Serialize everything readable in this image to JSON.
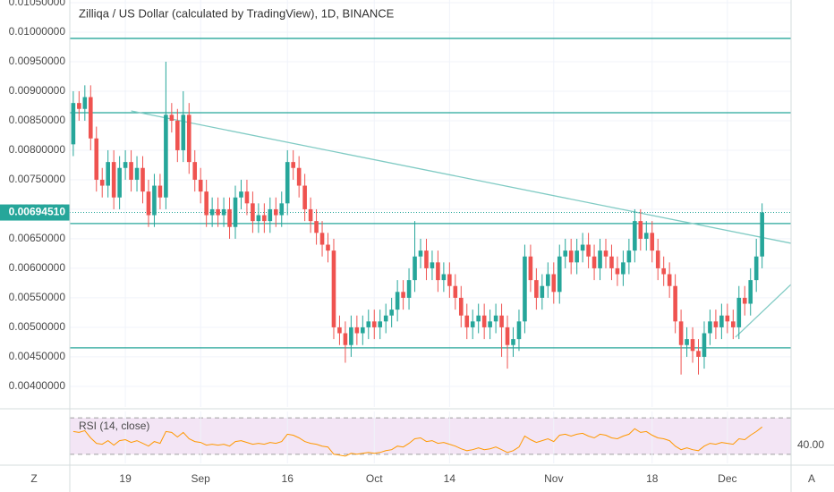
{
  "chart_data": {
    "type": "candlestick",
    "title": "Zilliqa / US Dollar (calculated by TradingView), 1D, BINANCE",
    "up_color": "#26a69a",
    "down_color": "#ef5350",
    "grid": true,
    "ylim": [
      0.00365,
      0.010545
    ],
    "xlim": [
      -0.6,
      124
    ],
    "yticks": [
      {
        "value": 0.0105,
        "label": "0.01050000"
      },
      {
        "value": 0.01,
        "label": "0.01000000"
      },
      {
        "value": 0.0095,
        "label": "0.00950000"
      },
      {
        "value": 0.009,
        "label": "0.00900000"
      },
      {
        "value": 0.0085,
        "label": "0.00850000"
      },
      {
        "value": 0.008,
        "label": "0.00800000"
      },
      {
        "value": 0.0075,
        "label": "0.00750000"
      },
      {
        "value": 0.007,
        "label": "0.00700000"
      },
      {
        "value": 0.0065,
        "label": "0.00650000"
      },
      {
        "value": 0.006,
        "label": "0.00600000"
      },
      {
        "value": 0.0055,
        "label": "0.00550000"
      },
      {
        "value": 0.005,
        "label": "0.00500000"
      },
      {
        "value": 0.0045,
        "label": "0.00450000"
      },
      {
        "value": 0.004,
        "label": "0.00400000"
      }
    ],
    "xticks": [
      {
        "value": 9,
        "label": "19"
      },
      {
        "value": 22,
        "label": "Sep"
      },
      {
        "value": 37,
        "label": "16"
      },
      {
        "value": 52,
        "label": "Oct"
      },
      {
        "value": 65,
        "label": "14"
      },
      {
        "value": 83,
        "label": "Nov"
      },
      {
        "value": 100,
        "label": "18"
      },
      {
        "value": 113,
        "label": "Dec"
      }
    ],
    "last_price": {
      "value": 0.0069451,
      "label": "0.00694510"
    },
    "open": [
      0.0081,
      0.0088,
      0.0087,
      0.0089,
      0.0082,
      0.0075,
      0.0074,
      0.0078,
      0.0072,
      0.0077,
      0.0078,
      0.0075,
      0.0077,
      0.0073,
      0.0069,
      0.0074,
      0.0072,
      0.0086,
      0.0085,
      0.008,
      0.0086,
      0.0078,
      0.0075,
      0.0073,
      0.0069,
      0.007,
      0.0069,
      0.007,
      0.0067,
      0.0072,
      0.0073,
      0.0071,
      0.0068,
      0.0069,
      0.0068,
      0.007,
      0.0069,
      0.0071,
      0.0078,
      0.0077,
      0.0074,
      0.007,
      0.0068,
      0.0066,
      0.0064,
      0.0063,
      0.005,
      0.0049,
      0.0047,
      0.005,
      0.0049,
      0.005,
      0.0051,
      0.005,
      0.0051,
      0.0052,
      0.0053,
      0.0056,
      0.0055,
      0.0058,
      0.0062,
      0.0063,
      0.006,
      0.0061,
      0.0058,
      0.0059,
      0.0057,
      0.0055,
      0.0052,
      0.005,
      0.0051,
      0.0052,
      0.005,
      0.0051,
      0.0052,
      0.005,
      0.0047,
      0.0048,
      0.0051,
      0.0062,
      0.0058,
      0.0055,
      0.0057,
      0.0059,
      0.0056,
      0.0062,
      0.0063,
      0.0061,
      0.0063,
      0.0064,
      0.0062,
      0.006,
      0.0063,
      0.0062,
      0.006,
      0.0059,
      0.0061,
      0.0063,
      0.0068,
      0.0065,
      0.0066,
      0.0063,
      0.006,
      0.0059,
      0.0057,
      0.0051,
      0.0047,
      0.0048,
      0.0046,
      0.0045,
      0.0049,
      0.0051,
      0.005,
      0.0052,
      0.0051,
      0.005,
      0.0055,
      0.0054,
      0.0058,
      0.0062
    ],
    "high": [
      0.009,
      0.009,
      0.0091,
      0.0091,
      0.0084,
      0.0077,
      0.008,
      0.008,
      0.0079,
      0.008,
      0.008,
      0.0079,
      0.0079,
      0.0075,
      0.0076,
      0.0076,
      0.0095,
      0.0088,
      0.0087,
      0.009,
      0.0088,
      0.008,
      0.0077,
      0.0075,
      0.0072,
      0.0072,
      0.0072,
      0.0072,
      0.0074,
      0.0075,
      0.0075,
      0.0073,
      0.0071,
      0.0071,
      0.0072,
      0.0072,
      0.0073,
      0.008,
      0.008,
      0.0079,
      0.0076,
      0.0072,
      0.007,
      0.0068,
      0.0066,
      0.0065,
      0.0052,
      0.0051,
      0.0052,
      0.0052,
      0.0052,
      0.0053,
      0.0053,
      0.0053,
      0.0054,
      0.0055,
      0.0058,
      0.0058,
      0.006,
      0.0068,
      0.0065,
      0.0065,
      0.0063,
      0.0063,
      0.0061,
      0.0061,
      0.0059,
      0.0057,
      0.0054,
      0.0053,
      0.0054,
      0.0054,
      0.0053,
      0.0054,
      0.0054,
      0.0052,
      0.005,
      0.0053,
      0.0064,
      0.0064,
      0.006,
      0.0059,
      0.0061,
      0.0061,
      0.0064,
      0.0065,
      0.0065,
      0.0065,
      0.0066,
      0.0066,
      0.0064,
      0.0065,
      0.0065,
      0.0064,
      0.0062,
      0.0063,
      0.0065,
      0.007,
      0.007,
      0.0068,
      0.0068,
      0.0065,
      0.0062,
      0.0061,
      0.0059,
      0.0053,
      0.005,
      0.005,
      0.0048,
      0.0051,
      0.0053,
      0.0053,
      0.0054,
      0.0054,
      0.0053,
      0.0057,
      0.0057,
      0.006,
      0.0065,
      0.0071
    ],
    "low": [
      0.0079,
      0.0085,
      0.0085,
      0.008,
      0.0073,
      0.0072,
      0.0072,
      0.007,
      0.007,
      0.0075,
      0.0073,
      0.0073,
      0.0071,
      0.0067,
      0.0067,
      0.007,
      0.007,
      0.0083,
      0.0078,
      0.0078,
      0.0076,
      0.0073,
      0.0071,
      0.0067,
      0.0067,
      0.0067,
      0.0067,
      0.0065,
      0.0065,
      0.007,
      0.0069,
      0.0066,
      0.0066,
      0.0066,
      0.0066,
      0.0067,
      0.0067,
      0.0069,
      0.0075,
      0.0072,
      0.0068,
      0.0066,
      0.0064,
      0.0062,
      0.0061,
      0.0048,
      0.0047,
      0.0044,
      0.0045,
      0.0047,
      0.0047,
      0.0048,
      0.0048,
      0.0048,
      0.0049,
      0.005,
      0.0051,
      0.0053,
      0.0053,
      0.0056,
      0.006,
      0.0058,
      0.0058,
      0.0056,
      0.0056,
      0.0055,
      0.0053,
      0.005,
      0.0048,
      0.0048,
      0.0049,
      0.0048,
      0.0048,
      0.0049,
      0.0045,
      0.0043,
      0.0045,
      0.0046,
      0.0049,
      0.0056,
      0.0053,
      0.0053,
      0.0055,
      0.0054,
      0.0054,
      0.006,
      0.0059,
      0.0059,
      0.0061,
      0.006,
      0.0058,
      0.0058,
      0.006,
      0.0058,
      0.0057,
      0.0057,
      0.0059,
      0.0061,
      0.0063,
      0.0063,
      0.0061,
      0.0058,
      0.0057,
      0.0055,
      0.0049,
      0.0042,
      0.0045,
      0.0044,
      0.0042,
      0.0043,
      0.0047,
      0.0048,
      0.0048,
      0.0049,
      0.0048,
      0.0048,
      0.0052,
      0.0052,
      0.0056,
      0.006
    ],
    "close": [
      0.0088,
      0.0087,
      0.0089,
      0.0082,
      0.0075,
      0.0074,
      0.0078,
      0.0072,
      0.0077,
      0.0078,
      0.0075,
      0.0077,
      0.0073,
      0.0069,
      0.0074,
      0.0072,
      0.0086,
      0.0085,
      0.008,
      0.0086,
      0.0078,
      0.0075,
      0.0073,
      0.0069,
      0.007,
      0.0069,
      0.007,
      0.0067,
      0.0072,
      0.0073,
      0.0071,
      0.0068,
      0.0069,
      0.0068,
      0.007,
      0.0069,
      0.0071,
      0.0078,
      0.0077,
      0.0074,
      0.007,
      0.0068,
      0.0066,
      0.0064,
      0.0063,
      0.005,
      0.0049,
      0.0047,
      0.005,
      0.0049,
      0.005,
      0.0051,
      0.005,
      0.0051,
      0.0052,
      0.0053,
      0.0056,
      0.0055,
      0.0058,
      0.0062,
      0.0063,
      0.006,
      0.0061,
      0.0058,
      0.0059,
      0.0057,
      0.0055,
      0.0052,
      0.005,
      0.0051,
      0.0052,
      0.005,
      0.0051,
      0.0052,
      0.005,
      0.0047,
      0.0048,
      0.0051,
      0.0062,
      0.0058,
      0.0055,
      0.0057,
      0.0059,
      0.0056,
      0.0062,
      0.0063,
      0.0061,
      0.0063,
      0.0064,
      0.0062,
      0.006,
      0.0063,
      0.0062,
      0.006,
      0.0059,
      0.0061,
      0.0063,
      0.0068,
      0.0065,
      0.0066,
      0.0063,
      0.006,
      0.0059,
      0.0057,
      0.0051,
      0.0047,
      0.0048,
      0.0046,
      0.0045,
      0.0049,
      0.0051,
      0.005,
      0.0052,
      0.0051,
      0.005,
      0.0055,
      0.0054,
      0.0058,
      0.0062,
      0.006945
    ],
    "levels": {
      "color": "#26a69a",
      "values": [
        0.009894,
        0.008636,
        0.006758,
        0.004652
      ]
    },
    "trendlines": {
      "color": "#80cbc4",
      "lines": [
        {
          "x": [
            10,
            124
          ],
          "y": [
            0.008666,
            0.006424
          ]
        },
        {
          "x": [
            114.4,
            124
          ],
          "y": [
            0.004833,
            0.005727
          ]
        }
      ]
    },
    "rsi": {
      "label": "RSI (14, close)",
      "color": "#ff9800",
      "ylim": [
        20,
        77
      ],
      "bands": [
        30,
        70
      ],
      "yticks": [
        {
          "value": 40,
          "label": "40.00"
        }
      ],
      "values": [
        55,
        54,
        56,
        48,
        42,
        41,
        45,
        40,
        45,
        46,
        43,
        45,
        42,
        39,
        44,
        42,
        55,
        54,
        49,
        54,
        47,
        44,
        43,
        40,
        41,
        40,
        41,
        39,
        44,
        45,
        43,
        41,
        42,
        41,
        43,
        42,
        44,
        52,
        51,
        48,
        44,
        42,
        41,
        39,
        38,
        30,
        29,
        28,
        31,
        30,
        31,
        32,
        31,
        32,
        34,
        35,
        39,
        38,
        42,
        47,
        48,
        44,
        45,
        42,
        43,
        41,
        39,
        36,
        34,
        35,
        37,
        35,
        36,
        38,
        35,
        32,
        34,
        38,
        50,
        46,
        43,
        45,
        47,
        44,
        51,
        52,
        50,
        52,
        53,
        50,
        48,
        52,
        51,
        48,
        47,
        50,
        52,
        58,
        54,
        55,
        51,
        48,
        47,
        45,
        39,
        35,
        37,
        35,
        34,
        39,
        42,
        41,
        43,
        42,
        41,
        47,
        46,
        51,
        55,
        60
      ]
    },
    "buttons": {
      "left": "Z",
      "right": "A"
    }
  }
}
